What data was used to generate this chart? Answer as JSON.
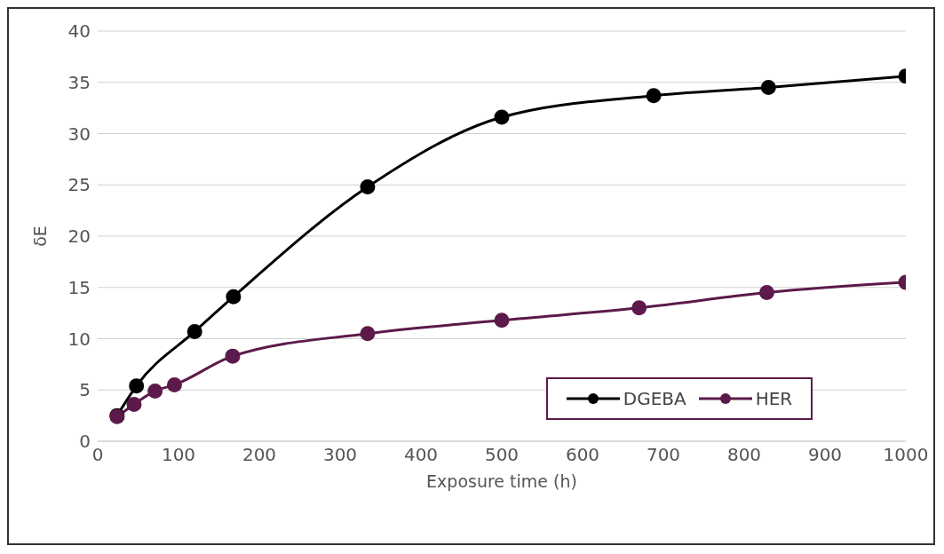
{
  "chart_data": {
    "type": "line",
    "xlabel": "Exposure time (h)",
    "ylabel": "δE",
    "xlim": [
      0,
      1000
    ],
    "xticks": [
      0,
      100,
      200,
      300,
      400,
      500,
      600,
      700,
      800,
      900,
      1000
    ],
    "ylim": [
      0,
      40
    ],
    "yticks": [
      0,
      5,
      10,
      15,
      20,
      25,
      30,
      35,
      40
    ],
    "grid": "y",
    "legend": "bottom right",
    "marker": "circle",
    "line_style": "solid",
    "series": [
      {
        "name": "DGEBA",
        "color": "#000000",
        "x": [
          24,
          48,
          120,
          168,
          334,
          500,
          688,
          830,
          1000
        ],
        "values": [
          2.5,
          5.4,
          10.7,
          14.1,
          24.8,
          31.6,
          33.7,
          34.5,
          35.6
        ]
      },
      {
        "name": "HER",
        "color": "#5c1a4a",
        "x": [
          24,
          45,
          71,
          95,
          167,
          334,
          500,
          670,
          828,
          1000
        ],
        "values": [
          2.4,
          3.6,
          4.9,
          5.5,
          8.3,
          10.5,
          11.8,
          13.0,
          14.5,
          15.5
        ]
      }
    ]
  }
}
